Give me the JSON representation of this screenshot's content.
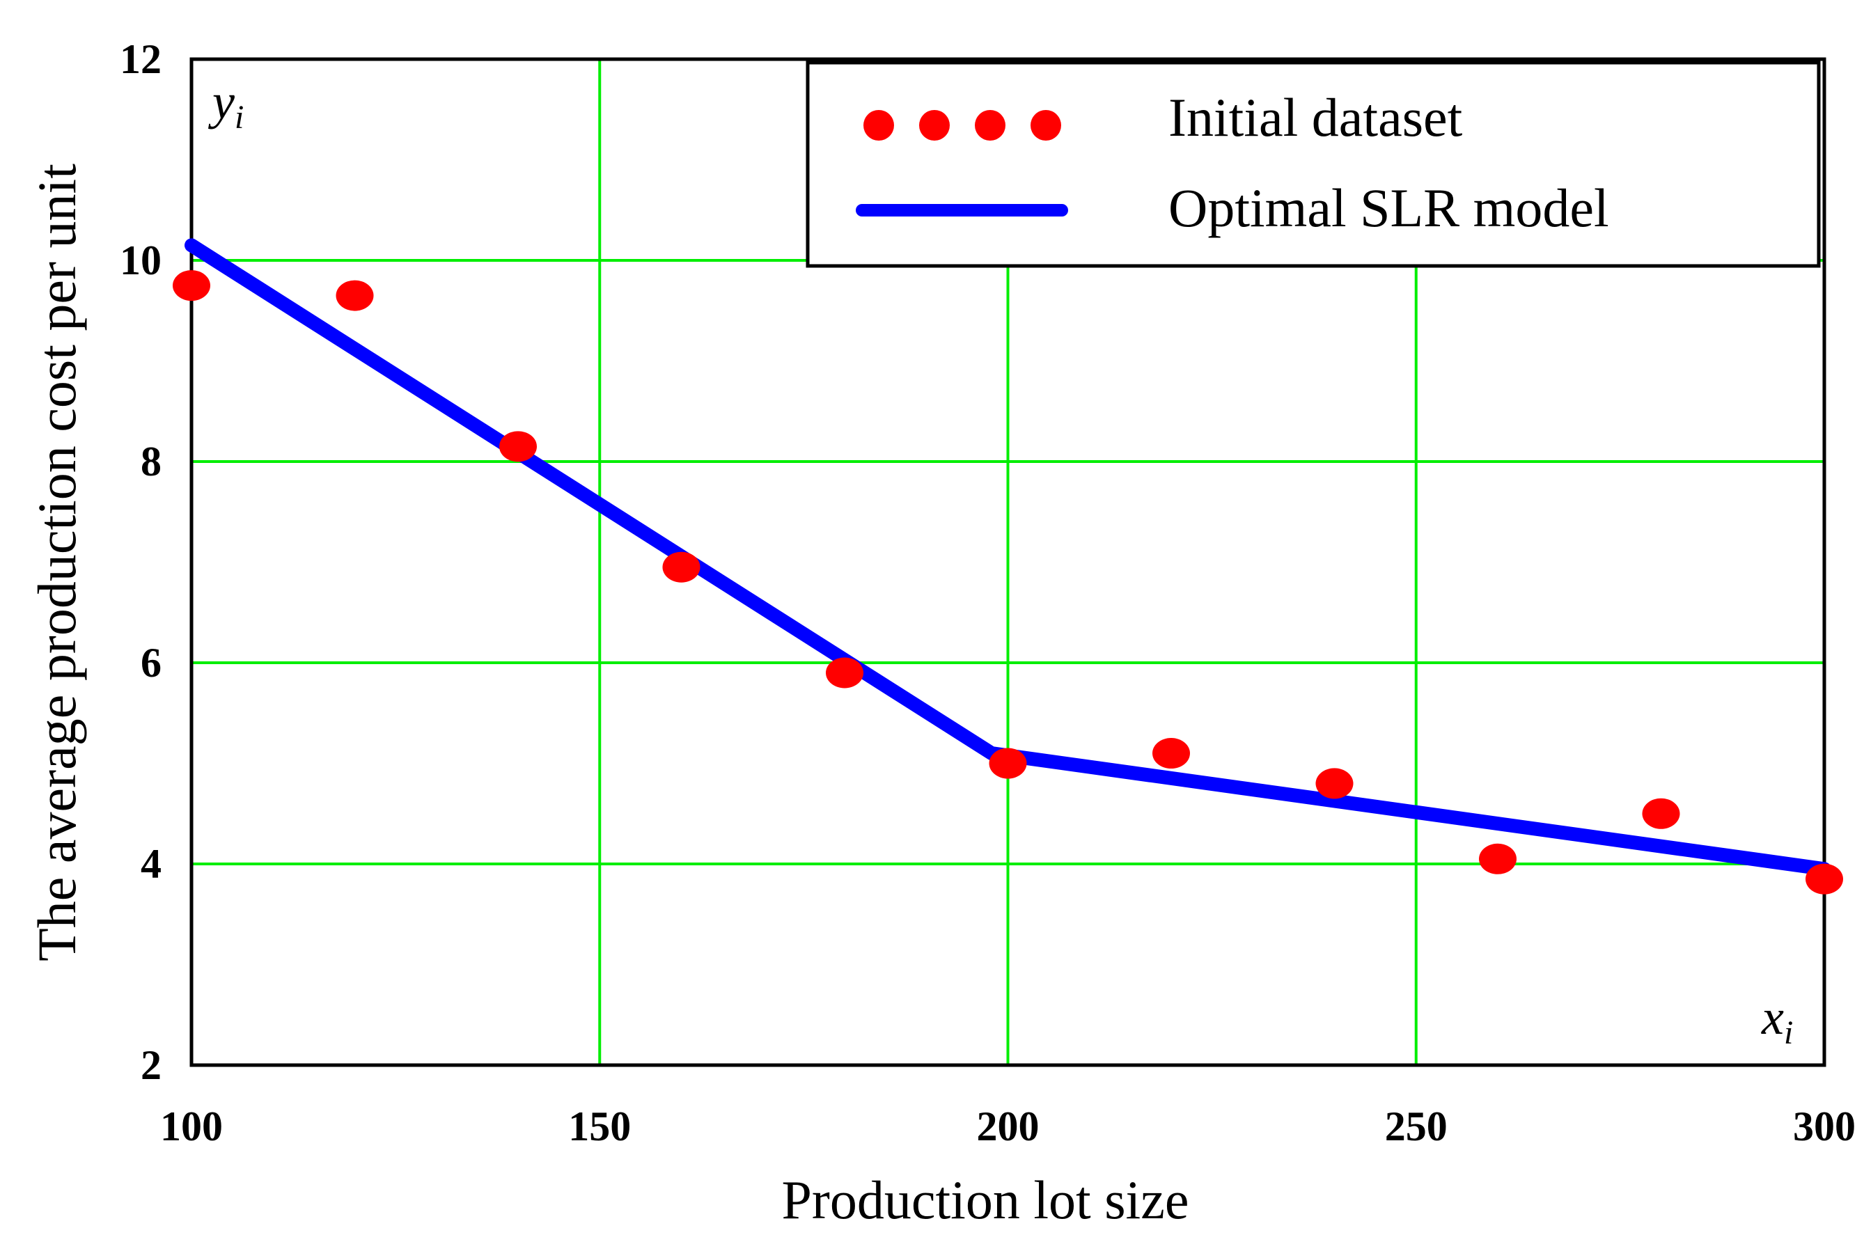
{
  "chart_data": {
    "type": "scatter",
    "xlabel": "Production lot size",
    "ylabel": "The average production cost per unit",
    "x_corner_label": {
      "base": "x",
      "sub": "i"
    },
    "y_corner_label": {
      "base": "y",
      "sub": "i"
    },
    "xlim": [
      100,
      300
    ],
    "ylim": [
      2,
      12
    ],
    "xticks": [
      "100",
      "150",
      "200",
      "250",
      "300"
    ],
    "yticks": [
      "2",
      "4",
      "6",
      "8",
      "10",
      "12"
    ],
    "grid": true,
    "legend_position": "top-right",
    "series": [
      {
        "name": "Initial dataset",
        "kind": "points",
        "color": "#ff0000",
        "x": [
          100,
          120,
          140,
          160,
          180,
          200,
          220,
          240,
          260,
          280,
          300
        ],
        "y": [
          9.75,
          9.65,
          8.15,
          6.95,
          5.9,
          5.0,
          5.1,
          4.8,
          4.05,
          4.5,
          3.85
        ]
      },
      {
        "name": "Optimal SLR model",
        "kind": "line",
        "color": "#0000ff",
        "x": [
          100,
          198,
          300
        ],
        "y": [
          10.15,
          5.1,
          3.95
        ]
      }
    ],
    "colors": {
      "grid": "#00ee00",
      "axis": "#000000"
    }
  }
}
